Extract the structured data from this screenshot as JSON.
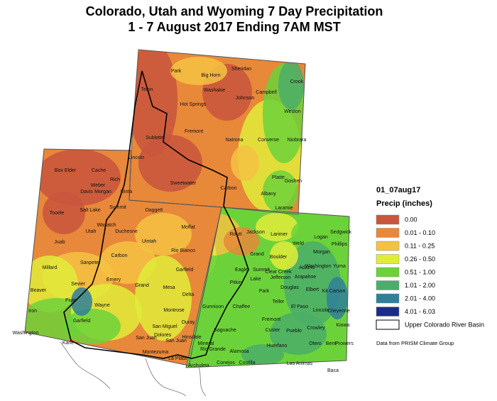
{
  "title": "Colorado, Utah and Wyoming 7 Day Precipitation",
  "subtitle": "1 - 7 August 2017 Ending 7AM MST",
  "map": {
    "labels": [
      "Park",
      "Big Horn",
      "Sheridan",
      "Crook",
      "Teton",
      "Washakie",
      "Johnson",
      "Campbell",
      "Hot Springs",
      "Weston",
      "Fremont",
      "Sublette",
      "Natrona",
      "Converse",
      "Niobrara",
      "Lincoln",
      "Sweetwater",
      "Platte",
      "Goshen",
      "Carbon",
      "Albany",
      "Uinta",
      "Laramie",
      "Box Elder",
      "Cache",
      "Rich",
      "Weber",
      "Davis",
      "Morgan",
      "Tooele",
      "Salt Lake",
      "Summit",
      "Daggett",
      "Wasatch",
      "Utah",
      "Duchesne",
      "Uintah",
      "Juab",
      "Carbon",
      "Sanpete",
      "Millard",
      "Emery",
      "Sevier",
      "Grand",
      "Beaver",
      "Piute",
      "Wayne",
      "Iron",
      "Garfield",
      "San Juan",
      "Washington",
      "Kane",
      "Moffat",
      "Routt",
      "Jackson",
      "Larimer",
      "Logan",
      "Sedgwick",
      "Phillips",
      "Weld",
      "Rio Blanco",
      "Grand",
      "Morgan",
      "Boulder",
      "Garfield",
      "Eagle",
      "Summit",
      "Adams",
      "Washington",
      "Yuma",
      "Clear Creek",
      "Jefferson",
      "Arapahoe",
      "Mesa",
      "Pitkin",
      "Lake",
      "Park",
      "Douglas",
      "Elbert",
      "Kit Carson",
      "Delta",
      "Gunnison",
      "Chaffee",
      "Teller",
      "El Paso",
      "Lincoln",
      "Cheyenne",
      "Montrose",
      "Ouray",
      "Fremont",
      "Kiowa",
      "Crowley",
      "San Miguel",
      "Hinsdale",
      "Saguache",
      "Custer",
      "Pueblo",
      "Dolores",
      "San Juan",
      "Otero",
      "Bent",
      "Prowers",
      "Montezuma",
      "Mineral",
      "Rio Grande",
      "Alamosa",
      "Huerfano",
      "La Plata",
      "Archuleta",
      "Conejos",
      "Costilla",
      "Las Animas",
      "Baca"
    ]
  },
  "legend": {
    "title": "01_07aug17",
    "heading": "Precip (inches)",
    "items": [
      {
        "label": "0.00",
        "color": "#c8553d"
      },
      {
        "label": "0.01 - 0.10",
        "color": "#e8883a"
      },
      {
        "label": "0.11 - 0.25",
        "color": "#f4c243"
      },
      {
        "label": "0.26 - 0.50",
        "color": "#e0ec3a"
      },
      {
        "label": "0.51 - 1.00",
        "color": "#6cd23a"
      },
      {
        "label": "1.01 - 2.00",
        "color": "#4aae6a"
      },
      {
        "label": "2.01 - 4.00",
        "color": "#2f7f9a"
      },
      {
        "label": "4.01 - 6.03",
        "color": "#1a2b8c"
      }
    ],
    "basin": "Upper Colorado River Basin",
    "source": "Data from PRISM Climate Group"
  }
}
